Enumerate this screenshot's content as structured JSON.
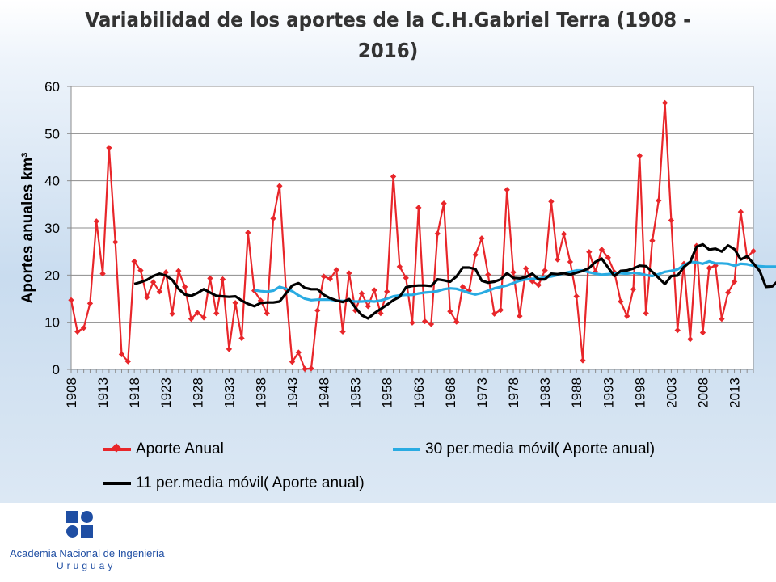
{
  "title_line1": "Variabilidad de los aportes de la C.H.Gabriel Terra (1908 -",
  "title_line2": "2016)",
  "logo": {
    "line1": "Academia Nacional de Ingeniería",
    "line2": "Uruguay"
  },
  "chart_data": {
    "type": "line",
    "title": "Variabilidad de los aportes de la C.H.Gabriel Terra (1908 - 2016)",
    "ylabel": "Aportes anuales km³",
    "xlabel": "",
    "ylim": [
      0,
      60
    ],
    "yticks": [
      0,
      10,
      20,
      30,
      40,
      50,
      60
    ],
    "xlim": [
      1908,
      2016
    ],
    "xticks": [
      1908,
      1913,
      1918,
      1923,
      1928,
      1933,
      1938,
      1943,
      1948,
      1953,
      1958,
      1963,
      1968,
      1973,
      1978,
      1983,
      1988,
      1993,
      1998,
      2003,
      2008,
      2013
    ],
    "grid": "horizontal",
    "legend_position": "bottom",
    "series": [
      {
        "name": "Aporte Anual",
        "color": "#e8262a",
        "marker": "diamond",
        "start_year": 1908,
        "values": [
          14.7,
          8,
          8.8,
          14,
          31.4,
          20.3,
          47,
          27,
          3.2,
          1.7,
          22.9,
          21,
          15.3,
          18.5,
          16.5,
          20.6,
          11.8,
          20.9,
          17.5,
          10.7,
          12,
          11,
          19.3,
          11.9,
          19.1,
          4.3,
          14.1,
          6.6,
          29,
          16.7,
          14.6,
          11.9,
          32,
          38.9,
          17,
          1.6,
          3.6,
          0.1,
          0.2,
          12.5,
          19.7,
          19.2,
          21.1,
          8,
          20.4,
          12.5,
          16.1,
          13.4,
          16.8,
          11.9,
          16.5,
          40.9,
          21.8,
          19.4,
          9.9,
          34.3,
          10.2,
          9.6,
          28.8,
          35.2,
          12.3,
          10.1,
          17.5,
          16.7,
          24.3,
          27.8,
          20.1,
          11.8,
          12.6,
          38.1,
          20.6,
          11.3,
          21.4,
          18.7,
          17.9,
          21,
          35.6,
          23.3,
          28.7,
          22.8,
          15.5,
          1.9,
          24.9,
          20.7,
          25.4,
          23.7,
          20.6,
          14.4,
          11.3,
          17,
          45.3,
          11.9,
          27.3,
          35.8,
          56.5,
          31.6,
          8.3,
          22.4,
          6.4,
          26.2,
          7.8,
          21.5,
          22,
          10.7,
          16.3,
          18.6,
          33.4,
          23.8,
          25.1
        ]
      },
      {
        "name": "30 per.media móvil( Aporte anual)",
        "color": "#29abe2",
        "start_year": 1937,
        "values": [
          16.8,
          16.6,
          16.5,
          16.7,
          17.5,
          17.1,
          16.6,
          15.7,
          15,
          14.7,
          14.8,
          14.8,
          14.8,
          14.6,
          14.5,
          14.5,
          14.4,
          14.4,
          14.5,
          14.4,
          14.6,
          15,
          15.5,
          15.7,
          15.8,
          15.8,
          16.1,
          16.3,
          16.4,
          16.6,
          17,
          17.2,
          17.1,
          16.7,
          16.2,
          15.9,
          16.2,
          16.7,
          17.2,
          17.5,
          17.8,
          18.3,
          18.8,
          19.1,
          19.2,
          19.3,
          19.5,
          19.7,
          20,
          20.4,
          20.7,
          21,
          21,
          20.6,
          20.3,
          20.1,
          20.2,
          20.4,
          20.4,
          20.3,
          20.5,
          20.3,
          20,
          19.8,
          20.2,
          20.7,
          20.9,
          21.2,
          22.1,
          22.8,
          22.7,
          22.4,
          22.9,
          22.5,
          22.5,
          22.4,
          22,
          22.4,
          22.3,
          22,
          21.9,
          21.8,
          21.8,
          21.8,
          21.8,
          21.7,
          21.5
        ]
      },
      {
        "name": "11 per.media móvil( Aporte anual)",
        "color": "#000000",
        "start_year": 1918,
        "values": [
          18.1,
          18.5,
          19,
          19.8,
          20.3,
          19.9,
          19,
          17.1,
          15.9,
          15.6,
          16.2,
          17,
          16.3,
          15.6,
          15.5,
          15.4,
          15.5,
          14.6,
          13.9,
          13.4,
          14.1,
          14.2,
          14.2,
          14.4,
          16.1,
          17.8,
          18.3,
          17.3,
          17,
          17,
          15.8,
          15.1,
          14.6,
          14.3,
          14.9,
          13.1,
          11.5,
          10.8,
          11.9,
          12.8,
          13.7,
          14.7,
          15.4,
          17.4,
          17.7,
          17.8,
          17.8,
          17.7,
          19.1,
          18.9,
          18.6,
          19.7,
          21.6,
          21.6,
          21.3,
          18.8,
          18.4,
          18.6,
          19.1,
          20.4,
          19.4,
          19.3,
          19.6,
          20.3,
          19.1,
          19.1,
          20.3,
          20.2,
          20.4,
          20.1,
          20.5,
          20.9,
          21.5,
          22.8,
          23.5,
          21.6,
          19.8,
          20.9,
          21,
          21.4,
          22,
          21.9,
          20.7,
          19.4,
          18.1,
          19.8,
          19.9,
          21.7,
          22.8,
          26,
          26.5,
          25.4,
          25.6,
          25,
          26.3,
          25.5,
          23.3,
          24,
          22.5,
          20.9,
          17.5,
          17.6,
          18.9,
          19.2
        ]
      }
    ]
  }
}
